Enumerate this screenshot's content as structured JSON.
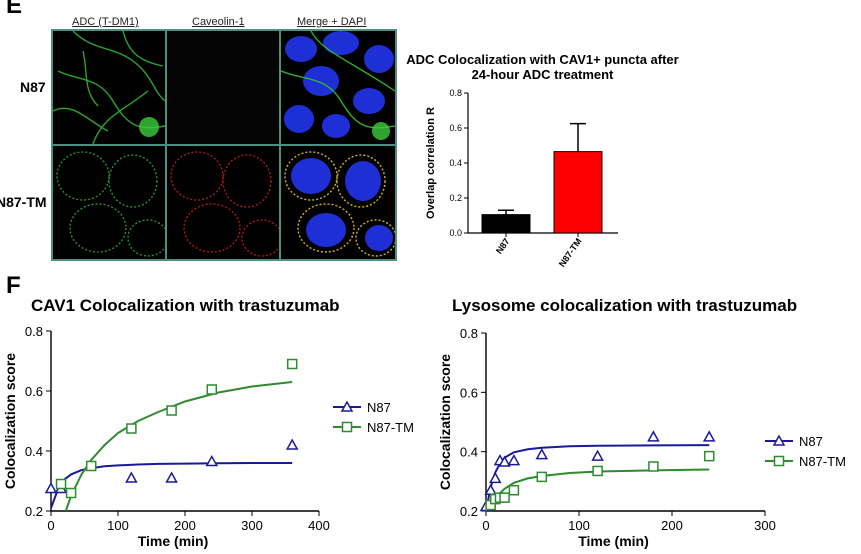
{
  "panel_e": {
    "letter": "E",
    "column_headers": [
      "ADC (T-DM1)",
      "Caveolin-1",
      "Merge + DAPI"
    ],
    "row_labels": [
      "N87",
      "N87-TM"
    ]
  },
  "panel_f": {
    "letter": "F"
  },
  "chart_data": [
    {
      "type": "bar",
      "title": "ADC Colocalization with CAV1+ puncta after 24-hour ADC treatment",
      "ylabel": "Overlap correlation R",
      "categories": [
        "N87",
        "N87-TM"
      ],
      "values": [
        0.105,
        0.465
      ],
      "errors": [
        0.025,
        0.16
      ],
      "ylim": [
        0,
        0.8
      ],
      "yticks": [
        "0.0",
        "0.2",
        "0.4",
        "0.6",
        "0.8"
      ],
      "colors": [
        "#000000",
        "#ff0000"
      ]
    },
    {
      "type": "scatter",
      "title": "CAV1 Colocalization with trastuzumab",
      "xlabel": "Time (min)",
      "ylabel": "Colocalization score",
      "xlim": [
        0,
        400
      ],
      "ylim": [
        0.2,
        0.8
      ],
      "xticks": [
        "0",
        "100",
        "200",
        "300",
        "400"
      ],
      "yticks": [
        "0.2",
        "0.4",
        "0.6",
        "0.8"
      ],
      "legend_position": "right",
      "series": [
        {
          "name": "N87",
          "marker": "triangle",
          "color": "#1a1a99",
          "x": [
            0,
            15,
            120,
            180,
            240,
            360
          ],
          "y": [
            0.275,
            0.275,
            0.31,
            0.31,
            0.365,
            0.42
          ],
          "fit_x": [
            0,
            10,
            20,
            30,
            45,
            60,
            80,
            100,
            130,
            160,
            200,
            250,
            300,
            360
          ],
          "fit_y": [
            0.21,
            0.27,
            0.305,
            0.322,
            0.336,
            0.343,
            0.349,
            0.352,
            0.355,
            0.357,
            0.358,
            0.359,
            0.36,
            0.36
          ]
        },
        {
          "name": "N87-TM",
          "marker": "square",
          "color": "#2e8b2e",
          "x": [
            15,
            30,
            60,
            120,
            180,
            240,
            360
          ],
          "y": [
            0.29,
            0.26,
            0.35,
            0.475,
            0.535,
            0.605,
            0.69
          ],
          "fit_x": [
            22,
            30,
            45,
            60,
            80,
            100,
            130,
            160,
            200,
            250,
            300,
            360
          ],
          "fit_y": [
            0.2,
            0.25,
            0.32,
            0.37,
            0.42,
            0.46,
            0.5,
            0.53,
            0.565,
            0.595,
            0.615,
            0.63
          ]
        }
      ]
    },
    {
      "type": "scatter",
      "title": "Lysosome colocalization with trastuzumab",
      "xlabel": "Time (min)",
      "ylabel": "Colocalization score",
      "xlim": [
        0,
        300
      ],
      "ylim": [
        0.2,
        0.8
      ],
      "xticks": [
        "0",
        "100",
        "200",
        "300"
      ],
      "yticks": [
        "0.2",
        "0.4",
        "0.6",
        "0.8"
      ],
      "legend_position": "right",
      "series": [
        {
          "name": "N87",
          "marker": "triangle",
          "color": "#1a1a99",
          "x": [
            0,
            5,
            10,
            15,
            20,
            30,
            60,
            120,
            180,
            240
          ],
          "y": [
            0.215,
            0.27,
            0.31,
            0.37,
            0.365,
            0.37,
            0.39,
            0.385,
            0.45,
            0.45
          ],
          "fit_x": [
            0,
            5,
            10,
            15,
            20,
            30,
            45,
            60,
            90,
            120,
            180,
            240
          ],
          "fit_y": [
            0.2,
            0.28,
            0.33,
            0.36,
            0.38,
            0.398,
            0.408,
            0.413,
            0.418,
            0.42,
            0.421,
            0.422
          ]
        },
        {
          "name": "N87-TM",
          "marker": "square",
          "color": "#2e8b2e",
          "x": [
            5,
            10,
            15,
            20,
            30,
            60,
            120,
            180,
            240
          ],
          "y": [
            0.22,
            0.24,
            0.245,
            0.245,
            0.27,
            0.315,
            0.335,
            0.35,
            0.385
          ],
          "fit_x": [
            0,
            5,
            10,
            20,
            30,
            45,
            60,
            90,
            120,
            180,
            240
          ],
          "fit_y": [
            0.2,
            0.225,
            0.245,
            0.275,
            0.295,
            0.31,
            0.318,
            0.328,
            0.333,
            0.337,
            0.34
          ]
        }
      ]
    }
  ]
}
